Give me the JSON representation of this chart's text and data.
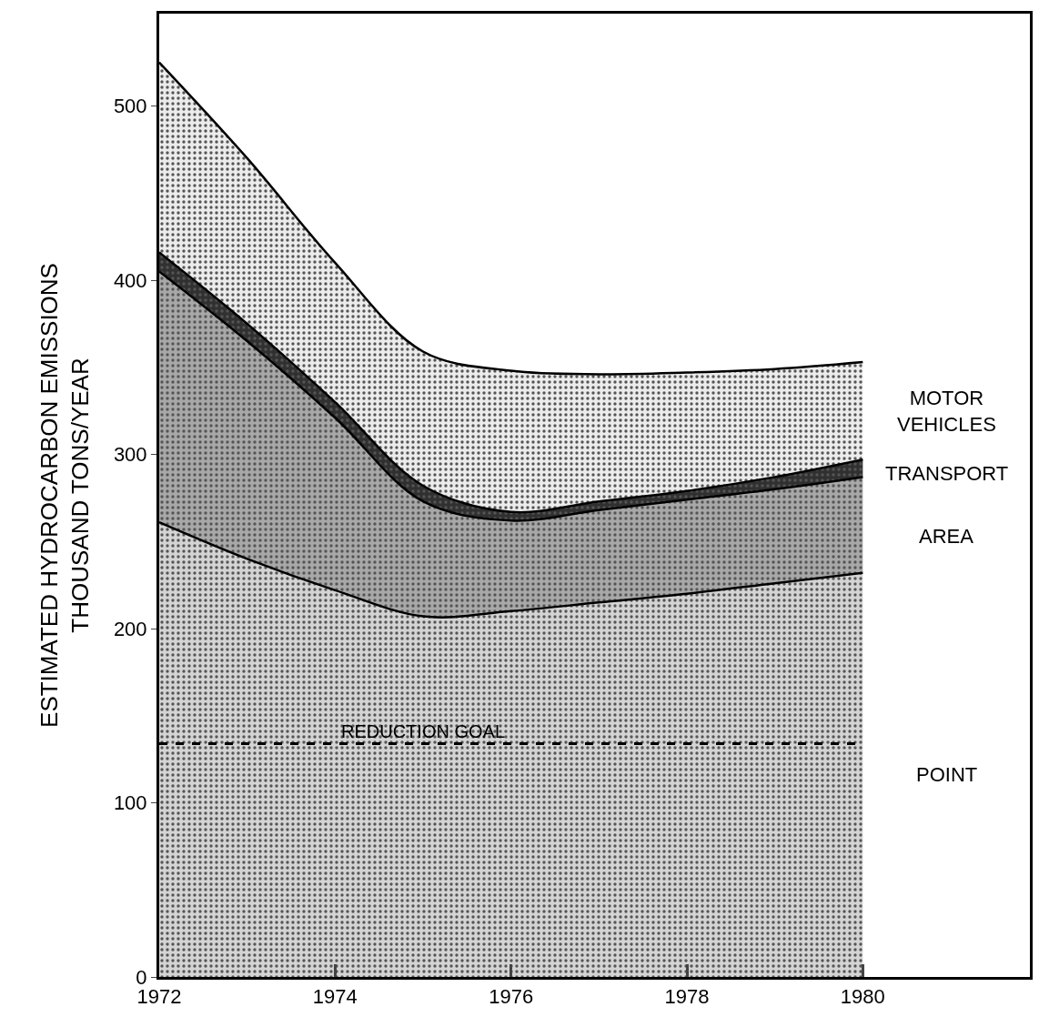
{
  "chart_data": {
    "type": "area",
    "stacked": true,
    "ylabel": "ESTIMATED HYDROCARBON EMISSIONS\nTHOUSAND TONS/YEAR",
    "x": [
      1972,
      1973,
      1974,
      1975,
      1976,
      1977,
      1978,
      1979,
      1980
    ],
    "series": [
      {
        "name": "POINT",
        "color": "#d4d4d4",
        "values": [
          261,
          240,
          222,
          207,
          210,
          215,
          220,
          226,
          232
        ]
      },
      {
        "name": "AREA",
        "color": "#a8a8a8",
        "values": [
          144,
          125,
          99,
          66,
          52,
          53,
          54,
          54,
          55
        ]
      },
      {
        "name": "TRANSPORT",
        "color": "#303030",
        "values": [
          11,
          10,
          9,
          9,
          5,
          5,
          5,
          7,
          10
        ]
      },
      {
        "name": "MOTOR\nVEHICLES",
        "color": "#ececec",
        "values": [
          109,
          95,
          80,
          77,
          81,
          73,
          68,
          62,
          56
        ]
      }
    ],
    "xlim": [
      1972,
      1981.9
    ],
    "xticks": [
      1972,
      1974,
      1976,
      1978,
      1980
    ],
    "ylim": [
      0,
      553
    ],
    "yticks": [
      0,
      100,
      200,
      300,
      400,
      500
    ],
    "ref_lines": [
      {
        "axis": "y",
        "value": 134,
        "label": "REDUCTION GOAL",
        "line_style": "dashed",
        "color": "#000000"
      }
    ],
    "grid": false,
    "legend": false
  }
}
